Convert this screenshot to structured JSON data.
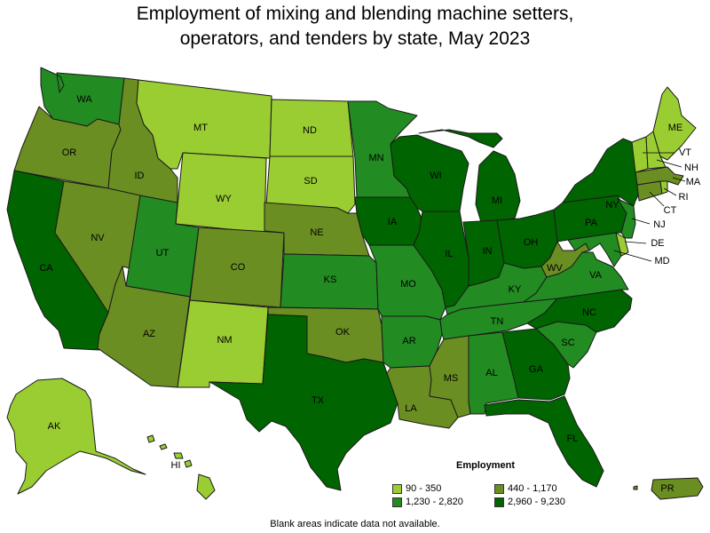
{
  "title": {
    "line1": "Employment of mixing and blending machine setters,",
    "line2": "operators, and tenders by state, May 2023"
  },
  "colors": {
    "c1": "#9acd32",
    "c2": "#6b8e23",
    "c3": "#228b22",
    "c4": "#006400"
  },
  "legend": {
    "title": "Employment",
    "items": [
      {
        "label": "90 - 350",
        "color_key": "c1"
      },
      {
        "label": "440 - 1,170",
        "color_key": "c2"
      },
      {
        "label": "1,230 - 2,820",
        "color_key": "c3"
      },
      {
        "label": "2,960 - 9,230",
        "color_key": "c4"
      }
    ]
  },
  "footnote": "Blank areas indicate data not available.",
  "states": {
    "WA": "c3",
    "OR": "c2",
    "CA": "c4",
    "ID": "c2",
    "NV": "c2",
    "MT": "c1",
    "WY": "c1",
    "UT": "c3",
    "AZ": "c2",
    "CO": "c2",
    "NM": "c1",
    "ND": "c1",
    "SD": "c1",
    "NE": "c2",
    "KS": "c3",
    "OK": "c2",
    "TX": "c4",
    "MN": "c3",
    "IA": "c4",
    "MO": "c3",
    "AR": "c3",
    "LA": "c2",
    "WI": "c4",
    "IL": "c4",
    "MI": "c4",
    "IN": "c4",
    "OH": "c4",
    "KY": "c3",
    "TN": "c3",
    "MS": "c2",
    "AL": "c3",
    "GA": "c4",
    "FL": "c4",
    "SC": "c3",
    "NC": "c4",
    "VA": "c3",
    "WV": "c2",
    "PA": "c4",
    "NY": "c4",
    "VT": "c1",
    "NH": "c1",
    "ME": "c1",
    "MA": "c2",
    "CT": "c2",
    "RI": "c1",
    "NJ": "c3",
    "DE": "c1",
    "MD": "c3",
    "AK": "c1",
    "HI": "c1",
    "PR": "c2"
  },
  "labels": {
    "WA": "WA",
    "OR": "OR",
    "CA": "CA",
    "ID": "ID",
    "NV": "NV",
    "MT": "MT",
    "WY": "WY",
    "UT": "UT",
    "AZ": "AZ",
    "CO": "CO",
    "NM": "NM",
    "ND": "ND",
    "SD": "SD",
    "NE": "NE",
    "KS": "KS",
    "OK": "OK",
    "TX": "TX",
    "MN": "MN",
    "IA": "IA",
    "MO": "MO",
    "AR": "AR",
    "LA": "LA",
    "WI": "WI",
    "IL": "IL",
    "MI": "MI",
    "IN": "IN",
    "OH": "OH",
    "KY": "KY",
    "TN": "TN",
    "MS": "MS",
    "AL": "AL",
    "GA": "GA",
    "FL": "FL",
    "SC": "SC",
    "NC": "NC",
    "VA": "VA",
    "WV": "WV",
    "PA": "PA",
    "NY": "NY",
    "VT": "VT",
    "NH": "NH",
    "ME": "ME",
    "MA": "MA",
    "CT": "CT",
    "RI": "RI",
    "NJ": "NJ",
    "DE": "DE",
    "MD": "MD",
    "AK": "AK",
    "HI": "HI",
    "PR": "PR"
  }
}
